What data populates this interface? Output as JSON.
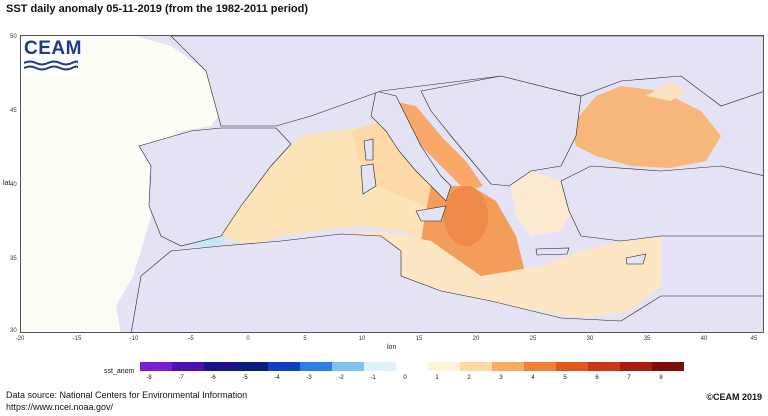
{
  "title": "SST daily anomaly 05-11-2019 (from the 1982-2011 period)",
  "logo": {
    "text": "CEAM",
    "color": "#1f3a8a"
  },
  "map": {
    "ylabel": "lat",
    "xlabel": "lon",
    "yticks": [
      "50",
      "45",
      "40",
      "35",
      "30"
    ],
    "xticks": [
      "-20",
      "-15",
      "-10",
      "-5",
      "0",
      "5",
      "10",
      "15",
      "20",
      "25",
      "30",
      "35",
      "40",
      "45"
    ]
  },
  "colorbar": {
    "label": "sst_anom",
    "ticks": [
      "-8",
      "-7",
      "-6",
      "-5",
      "-4",
      "-3",
      "-2",
      "-1",
      "0",
      "1",
      "2",
      "3",
      "4",
      "5",
      "6",
      "7",
      "8"
    ]
  },
  "footer": {
    "source_line1": "Data source: National Centers for Environmental Information",
    "source_line2": "https://www.ncei.noaa.gov/",
    "copyright": "©CEAM 2019"
  }
}
